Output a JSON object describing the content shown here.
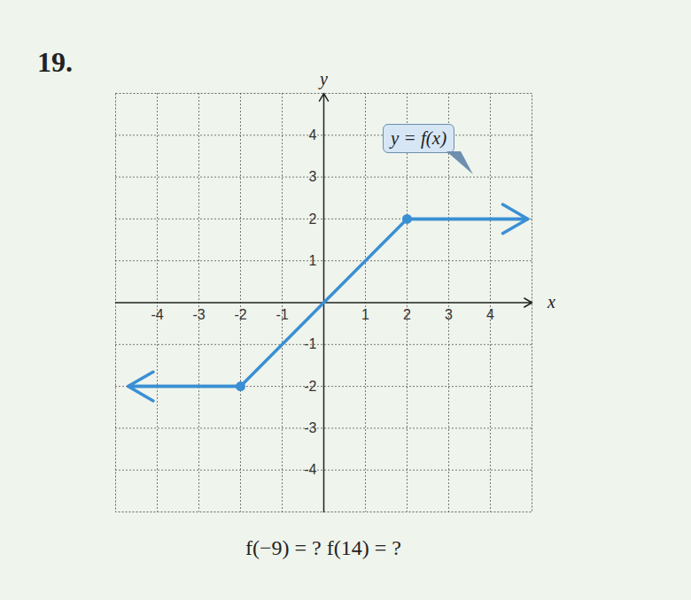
{
  "chart_data": {
    "type": "line",
    "title": "19.",
    "caption": "f(−9) = ?   f(14) = ?",
    "annotation": "y = f(x)",
    "x_label": "x",
    "y_label": "y",
    "series": [
      {
        "name": "y = f(x)",
        "color": "#3a8fd4",
        "x": [
          -4.7,
          -2,
          2,
          4.9
        ],
        "values": [
          -2,
          -2,
          2,
          2
        ],
        "line_style": "solid",
        "marker": "circle",
        "dots": {
          "x": [
            -2,
            2
          ],
          "y": [
            -2,
            2
          ]
        }
      }
    ],
    "xlim": [
      -5,
      5
    ],
    "ylim": [
      -5,
      5
    ],
    "xticks": [
      -4,
      -3,
      -2,
      -1,
      1,
      2,
      3,
      4
    ],
    "yticks": [
      -4,
      -3,
      -2,
      -1,
      1,
      2,
      3,
      4
    ],
    "grid": true
  }
}
